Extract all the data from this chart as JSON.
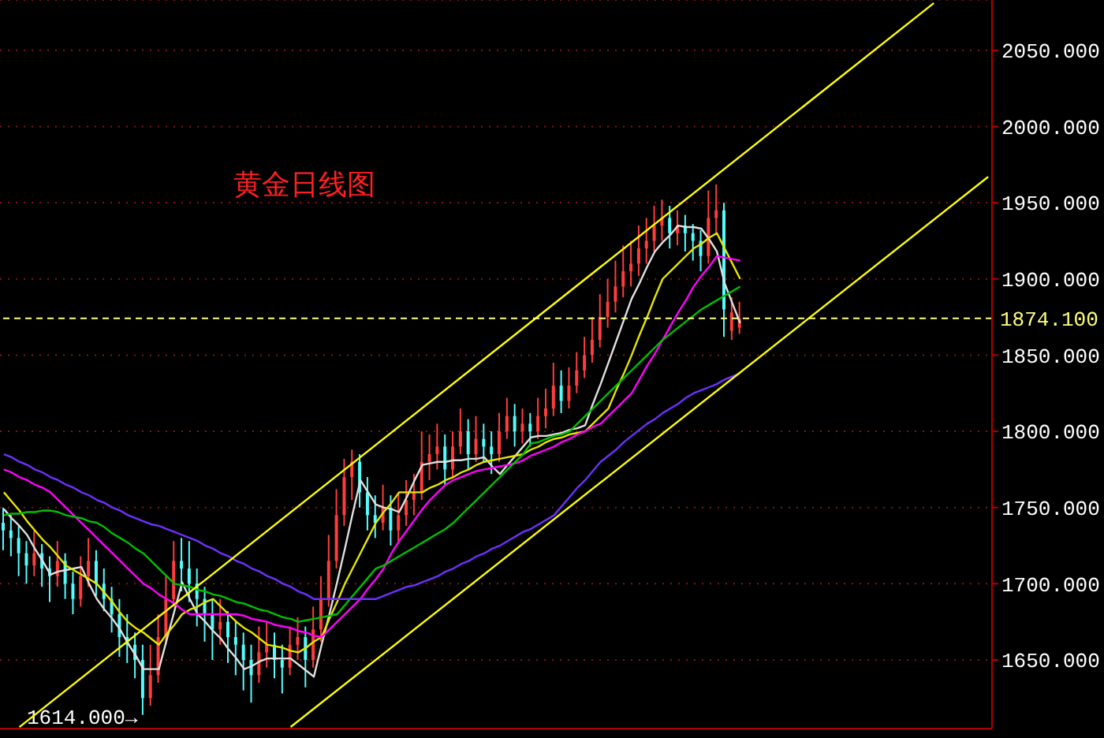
{
  "chart_data": {
    "type": "candlestick",
    "title": "黄金日线图",
    "categories": [
      null,
      null,
      null,
      null,
      null,
      null,
      null,
      null,
      null,
      null,
      null,
      null,
      null,
      null,
      null,
      null,
      null,
      null,
      null,
      null,
      null,
      null,
      null,
      null,
      null,
      null,
      null,
      null,
      null,
      null,
      null,
      null,
      null,
      null,
      null,
      null,
      null,
      null,
      null,
      null,
      null,
      null,
      null,
      null,
      null,
      null,
      null,
      null,
      null,
      null,
      null,
      null,
      null,
      null,
      null,
      null,
      null,
      null,
      null,
      null,
      null,
      null,
      null,
      null,
      null,
      null,
      null,
      null,
      null,
      null,
      null,
      null,
      null,
      null,
      null,
      null,
      null,
      null,
      null,
      null,
      null,
      null,
      null,
      null,
      null,
      null,
      null,
      null,
      null,
      null,
      null,
      null,
      null,
      null,
      null,
      null,
      null,
      null,
      null,
      null,
      null,
      null,
      null,
      null,
      null,
      null,
      null,
      null,
      null,
      null,
      null,
      null,
      null,
      null,
      null,
      null,
      null,
      null,
      null,
      null,
      null,
      null,
      null,
      null,
      null,
      null,
      null,
      null
    ],
    "ohlc": [
      [
        1740,
        1750,
        1722,
        1735
      ],
      [
        1735,
        1745,
        1718,
        1730
      ],
      [
        1730,
        1738,
        1705,
        1720
      ],
      [
        1720,
        1728,
        1700,
        1712
      ],
      [
        1712,
        1735,
        1705,
        1720
      ],
      [
        1720,
        1726,
        1698,
        1710
      ],
      [
        1710,
        1718,
        1688,
        1705
      ],
      [
        1705,
        1728,
        1698,
        1715
      ],
      [
        1715,
        1720,
        1690,
        1700
      ],
      [
        1700,
        1708,
        1680,
        1690
      ],
      [
        1690,
        1718,
        1685,
        1705
      ],
      [
        1705,
        1730,
        1698,
        1715
      ],
      [
        1715,
        1722,
        1692,
        1700
      ],
      [
        1700,
        1710,
        1682,
        1690
      ],
      [
        1690,
        1698,
        1668,
        1680
      ],
      [
        1680,
        1690,
        1652,
        1665
      ],
      [
        1665,
        1680,
        1648,
        1660
      ],
      [
        1660,
        1668,
        1638,
        1650
      ],
      [
        1650,
        1660,
        1614,
        1625
      ],
      [
        1625,
        1660,
        1620,
        1640
      ],
      [
        1640,
        1680,
        1635,
        1665
      ],
      [
        1665,
        1705,
        1660,
        1690
      ],
      [
        1690,
        1728,
        1685,
        1715
      ],
      [
        1715,
        1730,
        1695,
        1710
      ],
      [
        1710,
        1728,
        1688,
        1700
      ],
      [
        1700,
        1710,
        1672,
        1690
      ],
      [
        1690,
        1698,
        1662,
        1680
      ],
      [
        1680,
        1690,
        1650,
        1670
      ],
      [
        1670,
        1690,
        1660,
        1675
      ],
      [
        1675,
        1682,
        1648,
        1665
      ],
      [
        1665,
        1675,
        1640,
        1660
      ],
      [
        1660,
        1668,
        1630,
        1650
      ],
      [
        1650,
        1660,
        1622,
        1640
      ],
      [
        1640,
        1672,
        1635,
        1655
      ],
      [
        1655,
        1675,
        1645,
        1660
      ],
      [
        1660,
        1668,
        1638,
        1650
      ],
      [
        1650,
        1660,
        1628,
        1645
      ],
      [
        1645,
        1672,
        1640,
        1660
      ],
      [
        1660,
        1678,
        1650,
        1665
      ],
      [
        1665,
        1672,
        1632,
        1650
      ],
      [
        1650,
        1685,
        1645,
        1670
      ],
      [
        1670,
        1705,
        1662,
        1690
      ],
      [
        1690,
        1732,
        1685,
        1715
      ],
      [
        1715,
        1762,
        1710,
        1745
      ],
      [
        1745,
        1782,
        1738,
        1770
      ],
      [
        1770,
        1788,
        1755,
        1780
      ],
      [
        1780,
        1785,
        1750,
        1760
      ],
      [
        1760,
        1770,
        1735,
        1745
      ],
      [
        1745,
        1758,
        1730,
        1740
      ],
      [
        1740,
        1765,
        1735,
        1750
      ],
      [
        1750,
        1758,
        1725,
        1735
      ],
      [
        1735,
        1760,
        1728,
        1745
      ],
      [
        1745,
        1768,
        1738,
        1755
      ],
      [
        1755,
        1772,
        1745,
        1760
      ],
      [
        1760,
        1800,
        1755,
        1780
      ],
      [
        1780,
        1798,
        1768,
        1785
      ],
      [
        1785,
        1805,
        1775,
        1790
      ],
      [
        1790,
        1798,
        1765,
        1775
      ],
      [
        1775,
        1800,
        1770,
        1790
      ],
      [
        1790,
        1815,
        1785,
        1800
      ],
      [
        1800,
        1808,
        1775,
        1785
      ],
      [
        1785,
        1810,
        1780,
        1795
      ],
      [
        1795,
        1805,
        1780,
        1790
      ],
      [
        1790,
        1800,
        1772,
        1785
      ],
      [
        1785,
        1812,
        1780,
        1800
      ],
      [
        1800,
        1822,
        1795,
        1810
      ],
      [
        1810,
        1818,
        1790,
        1800
      ],
      [
        1800,
        1815,
        1792,
        1805
      ],
      [
        1805,
        1812,
        1790,
        1800
      ],
      [
        1800,
        1822,
        1795,
        1810
      ],
      [
        1810,
        1828,
        1802,
        1815
      ],
      [
        1815,
        1845,
        1810,
        1830
      ],
      [
        1830,
        1840,
        1812,
        1820
      ],
      [
        1820,
        1842,
        1815,
        1830
      ],
      [
        1830,
        1852,
        1825,
        1840
      ],
      [
        1840,
        1862,
        1835,
        1850
      ],
      [
        1850,
        1875,
        1845,
        1860
      ],
      [
        1860,
        1890,
        1855,
        1875
      ],
      [
        1875,
        1900,
        1868,
        1885
      ],
      [
        1885,
        1912,
        1878,
        1895
      ],
      [
        1895,
        1922,
        1888,
        1905
      ],
      [
        1905,
        1925,
        1895,
        1910
      ],
      [
        1910,
        1935,
        1902,
        1920
      ],
      [
        1920,
        1940,
        1910,
        1925
      ],
      [
        1925,
        1948,
        1918,
        1935
      ],
      [
        1935,
        1952,
        1925,
        1940
      ],
      [
        1940,
        1948,
        1920,
        1930
      ],
      [
        1930,
        1945,
        1922,
        1935
      ],
      [
        1935,
        1942,
        1918,
        1930
      ],
      [
        1930,
        1936,
        1912,
        1925
      ],
      [
        1925,
        1932,
        1905,
        1915
      ],
      [
        1915,
        1958,
        1910,
        1940
      ],
      [
        1940,
        1962,
        1930,
        1945
      ],
      [
        1945,
        1950,
        1862,
        1880
      ],
      [
        1866,
        1888,
        1860,
        1878
      ],
      [
        1868,
        1885,
        1864,
        1874
      ],
      null,
      null,
      null,
      null,
      null,
      null,
      null,
      null,
      null,
      null,
      null,
      null,
      null,
      null,
      null,
      null,
      null,
      null,
      null,
      null,
      null,
      null,
      null,
      null,
      null,
      null,
      null,
      null,
      null,
      null,
      null,
      null
    ],
    "colors": [
      "#54fcfc",
      "#54fcfc",
      "#54fcfc",
      "#54fcfc",
      "#ff3c3c",
      "#54fcfc",
      "#54fcfc",
      "#ff3c3c",
      "#54fcfc",
      "#54fcfc",
      "#ff3c3c",
      "#ff3c3c",
      "#54fcfc",
      "#54fcfc",
      "#54fcfc",
      "#54fcfc",
      "#54fcfc",
      "#54fcfc",
      "#54fcfc",
      "#ff3c3c",
      "#ff3c3c",
      "#ff3c3c",
      "#ff3c3c",
      "#54fcfc",
      "#54fcfc",
      "#54fcfc",
      "#54fcfc",
      "#54fcfc",
      "#ff3c3c",
      "#54fcfc",
      "#54fcfc",
      "#54fcfc",
      "#54fcfc",
      "#ff3c3c",
      "#ff3c3c",
      "#54fcfc",
      "#54fcfc",
      "#ff3c3c",
      "#ff3c3c",
      "#54fcfc",
      "#ff3c3c",
      "#ff3c3c",
      "#ff3c3c",
      "#ff3c3c",
      "#ff3c3c",
      "#ff3c3c",
      "#54fcfc",
      "#54fcfc",
      "#54fcfc",
      "#ff3c3c",
      "#54fcfc",
      "#ff3c3c",
      "#ff3c3c",
      "#ff3c3c",
      "#ff3c3c",
      "#ff3c3c",
      "#ff3c3c",
      "#54fcfc",
      "#ff3c3c",
      "#ff3c3c",
      "#54fcfc",
      "#ff3c3c",
      "#54fcfc",
      "#54fcfc",
      "#ff3c3c",
      "#ff3c3c",
      "#54fcfc",
      "#ff3c3c",
      "#54fcfc",
      "#ff3c3c",
      "#ff3c3c",
      "#ff3c3c",
      "#54fcfc",
      "#ff3c3c",
      "#ff3c3c",
      "#ff3c3c",
      "#ff3c3c",
      "#ff3c3c",
      "#ff3c3c",
      "#ff3c3c",
      "#ff3c3c",
      "#ff3c3c",
      "#ff3c3c",
      "#ff3c3c",
      "#ff3c3c",
      "#ff3c3c",
      "#54fcfc",
      "#ff3c3c",
      "#54fcfc",
      "#54fcfc",
      "#54fcfc",
      "#ff3c3c",
      "#ff3c3c",
      "#54fcfc",
      "#ff3c3c",
      "#ff3c3c",
      null,
      null,
      null,
      null,
      null,
      null,
      null,
      null,
      null,
      null,
      null,
      null,
      null,
      null,
      null,
      null,
      null,
      null,
      null,
      null,
      null,
      null,
      null,
      null,
      null,
      null,
      null,
      null,
      null,
      null,
      null,
      null
    ],
    "series": [
      {
        "type": "line",
        "color": "#e0e0e0",
        "values": [
          1749,
          1743,
          1738,
          1732,
          1723,
          1715,
          1706,
          1708,
          1709,
          1710,
          1711,
          1700,
          1690,
          1683,
          1677,
          1670,
          1661,
          1653,
          1644,
          1644,
          1644,
          1663,
          1682,
          1701,
          1690,
          1680,
          1675,
          1669,
          1664,
          1657,
          1651,
          1644,
          1646,
          1649,
          1651,
          1651,
          1651,
          1651,
          1647,
          1643,
          1639,
          1660,
          1680,
          1701,
          1723,
          1746,
          1768,
          1760,
          1752,
          1750,
          1749,
          1747,
          1757,
          1768,
          1778,
          1779,
          1780,
          1780,
          1781,
          1781,
          1782,
          1782,
          1783,
          1777,
          1772,
          1778,
          1784,
          1790,
          1796,
          1797,
          1797,
          1798,
          1799,
          1801,
          1802,
          1804,
          1818,
          1831,
          1845,
          1859,
          1873,
          1887,
          1897,
          1908,
          1918,
          1924,
          1929,
          1935,
          1934,
          1934,
          1933,
          1926,
          1918,
          1897,
          1884,
          1871,
          null,
          null,
          null,
          null,
          null,
          null,
          null,
          null,
          null,
          null,
          null,
          null,
          null,
          null,
          null,
          null,
          null,
          null,
          null,
          null,
          null,
          null,
          null,
          null,
          null,
          null,
          null,
          null,
          null,
          null,
          null,
          null
        ]
      },
      {
        "type": "line",
        "color": "#e6e600",
        "values": [
          1760,
          1754,
          1748,
          1741,
          1735,
          1729,
          1724,
          1718,
          1712,
          1709,
          1706,
          1703,
          1700,
          1694,
          1688,
          1681,
          1675,
          1671,
          1668,
          1664,
          1660,
          1667,
          1673,
          1680,
          1683,
          1685,
          1688,
          1690,
          1685,
          1680,
          1675,
          1671,
          1668,
          1664,
          1660,
          1659,
          1658,
          1656,
          1655,
          1658,
          1662,
          1665,
          1677,
          1688,
          1700,
          1710,
          1720,
          1730,
          1740,
          1747,
          1753,
          1760,
          1760,
          1760,
          1760,
          1763,
          1765,
          1768,
          1770,
          1773,
          1775,
          1778,
          1780,
          1781,
          1782,
          1783,
          1784,
          1785,
          1788,
          1790,
          1793,
          1795,
          1796,
          1798,
          1799,
          1800,
          1805,
          1810,
          1815,
          1827,
          1838,
          1850,
          1863,
          1875,
          1888,
          1900,
          1905,
          1910,
          1915,
          1920,
          1923,
          1927,
          1930,
          1920,
          1910,
          1900,
          null,
          null,
          null,
          null,
          null,
          null,
          null,
          null,
          null,
          null,
          null,
          null,
          null,
          null,
          null,
          null,
          null,
          null,
          null,
          null,
          null,
          null,
          null,
          null,
          null,
          null,
          null,
          null,
          null,
          null,
          null,
          null
        ]
      },
      {
        "type": "line",
        "color": "#ff00ff",
        "values": [
          1775,
          1773,
          1770,
          1768,
          1765,
          1763,
          1760,
          1755,
          1750,
          1745,
          1740,
          1735,
          1730,
          1725,
          1720,
          1715,
          1710,
          1705,
          1700,
          1697,
          1693,
          1690,
          1687,
          1683,
          1680,
          1680,
          1680,
          1680,
          1680,
          1680,
          1680,
          1679,
          1677,
          1676,
          1675,
          1673,
          1672,
          1671,
          1669,
          1668,
          1666,
          1665,
          1670,
          1675,
          1680,
          1685,
          1690,
          1697,
          1703,
          1710,
          1720,
          1728,
          1735,
          1742,
          1749,
          1755,
          1760,
          1765,
          1768,
          1770,
          1772,
          1774,
          1775,
          1776,
          1777,
          1778,
          1779,
          1781,
          1784,
          1786,
          1788,
          1790,
          1793,
          1795,
          1798,
          1800,
          1803,
          1805,
          1810,
          1815,
          1820,
          1825,
          1834,
          1843,
          1851,
          1860,
          1869,
          1878,
          1886,
          1895,
          1902,
          1908,
          1915,
          1914,
          1913,
          1912,
          null,
          null,
          null,
          null,
          null,
          null,
          null,
          null,
          null,
          null,
          null,
          null,
          null,
          null,
          null,
          null,
          null,
          null,
          null,
          null,
          null,
          null,
          null,
          null,
          null,
          null,
          null,
          null,
          null,
          null,
          null,
          null
        ]
      },
      {
        "type": "line",
        "color": "#00c000",
        "values": [
          1745,
          1746,
          1746,
          1747,
          1747,
          1748,
          1748,
          1747,
          1745,
          1744,
          1743,
          1741,
          1740,
          1737,
          1733,
          1730,
          1727,
          1723,
          1720,
          1715,
          1710,
          1705,
          1700,
          1699,
          1698,
          1696,
          1695,
          1693,
          1692,
          1690,
          1688,
          1687,
          1685,
          1683,
          1682,
          1680,
          1678,
          1677,
          1675,
          1676,
          1677,
          1678,
          1679,
          1680,
          1686,
          1692,
          1698,
          1704,
          1710,
          1712,
          1715,
          1718,
          1721,
          1724,
          1727,
          1730,
          1733,
          1736,
          1740,
          1745,
          1750,
          1755,
          1760,
          1765,
          1770,
          1775,
          1780,
          1785,
          1792,
          1793,
          1795,
          1797,
          1798,
          1800,
          1805,
          1810,
          1815,
          1820,
          1825,
          1830,
          1835,
          1840,
          1845,
          1850,
          1855,
          1860,
          1864,
          1868,
          1872,
          1876,
          1880,
          1883,
          1886,
          1889,
          1892,
          1895,
          null,
          null,
          null,
          null,
          null,
          null,
          null,
          null,
          null,
          null,
          null,
          null,
          null,
          null,
          null,
          null,
          null,
          null,
          null,
          null,
          null,
          null,
          null,
          null,
          null,
          null,
          null,
          null,
          null,
          null,
          null,
          null
        ]
      },
      {
        "type": "line",
        "color": "#7030ff",
        "values": [
          1785,
          1783,
          1780,
          1778,
          1775,
          1773,
          1770,
          1768,
          1765,
          1763,
          1760,
          1758,
          1755,
          1753,
          1750,
          1748,
          1745,
          1743,
          1741,
          1739,
          1738,
          1736,
          1734,
          1732,
          1730,
          1728,
          1725,
          1723,
          1720,
          1718,
          1715,
          1713,
          1710,
          1708,
          1705,
          1703,
          1700,
          1698,
          1695,
          1693,
          1690,
          1690,
          1690,
          1690,
          1690,
          1690,
          1690,
          1690,
          1690,
          1692,
          1694,
          1696,
          1698,
          1699,
          1701,
          1703,
          1705,
          1708,
          1710,
          1713,
          1715,
          1718,
          1720,
          1723,
          1725,
          1728,
          1731,
          1734,
          1736,
          1739,
          1742,
          1745,
          1751,
          1757,
          1763,
          1768,
          1774,
          1780,
          1784,
          1788,
          1793,
          1797,
          1801,
          1805,
          1808,
          1812,
          1815,
          1818,
          1822,
          1825,
          1827,
          1829,
          1831,
          1834,
          1836,
          1838,
          null,
          null,
          null,
          null,
          null,
          null,
          null,
          null,
          null,
          null,
          null,
          null,
          null,
          null,
          null,
          null,
          null,
          null,
          null,
          null,
          null,
          null,
          null,
          null,
          null,
          null,
          null,
          null,
          null,
          null,
          null,
          null
        ]
      },
      {
        "type": "line",
        "color": "#ffff00",
        "values": [
          null,
          null,
          1606,
          null,
          null,
          null,
          null,
          null,
          null,
          null,
          null,
          null,
          null,
          null,
          null,
          null,
          null,
          null,
          null,
          null,
          null,
          null,
          null,
          null,
          null,
          null,
          null,
          null,
          null,
          null,
          null,
          null,
          null,
          null,
          null,
          null,
          null,
          null,
          null,
          null,
          null,
          null,
          null,
          null,
          null,
          null,
          null,
          null,
          null,
          null,
          null,
          null,
          null,
          null,
          null,
          null,
          null,
          null,
          null,
          null,
          null,
          null,
          null,
          null,
          null,
          null,
          null,
          null,
          null,
          null,
          null,
          null,
          null,
          null,
          null,
          null,
          null,
          null,
          null,
          null,
          null,
          null,
          null,
          null,
          null,
          null,
          null,
          null,
          null,
          null,
          null,
          null,
          null,
          null,
          null,
          null,
          null,
          null,
          null,
          null,
          null,
          null,
          null,
          null,
          null,
          null,
          null,
          null,
          null,
          null,
          null,
          null,
          null,
          null,
          null,
          null,
          null,
          null,
          null,
          null,
          2081,
          null,
          null,
          null,
          null,
          null,
          null,
          null
        ]
      },
      {
        "type": "line",
        "color": "#ffff00",
        "values": [
          null,
          null,
          null,
          null,
          null,
          null,
          null,
          null,
          null,
          null,
          null,
          null,
          null,
          null,
          null,
          null,
          null,
          null,
          null,
          null,
          null,
          null,
          null,
          null,
          null,
          null,
          null,
          null,
          null,
          null,
          null,
          null,
          null,
          null,
          null,
          null,
          null,
          1606,
          null,
          null,
          null,
          null,
          null,
          null,
          null,
          null,
          null,
          null,
          null,
          null,
          null,
          null,
          null,
          null,
          null,
          null,
          null,
          null,
          null,
          null,
          null,
          null,
          null,
          null,
          null,
          null,
          null,
          null,
          null,
          null,
          null,
          null,
          null,
          null,
          null,
          null,
          null,
          null,
          null,
          null,
          null,
          null,
          null,
          null,
          null,
          null,
          null,
          null,
          null,
          null,
          null,
          null,
          null,
          null,
          null,
          null,
          null,
          null,
          null,
          null,
          null,
          null,
          null,
          null,
          null,
          null,
          null,
          null,
          null,
          null,
          null,
          null,
          null,
          null,
          null,
          null,
          null,
          null,
          null,
          null,
          null,
          null,
          null,
          null,
          null,
          null,
          null,
          1967
        ]
      }
    ],
    "ylim": [
      1605,
      2083
    ],
    "yticks": [
      {
        "value": 1650,
        "label": "1650.000"
      },
      {
        "value": 1700,
        "label": "1700.000"
      },
      {
        "value": 1750,
        "label": "1750.000"
      },
      {
        "value": 1800,
        "label": "1800.000"
      },
      {
        "value": 1850,
        "label": "1850.000"
      },
      {
        "value": 1900,
        "label": "1900.000"
      },
      {
        "value": 1950,
        "label": "1950.000"
      },
      {
        "value": 2000,
        "label": "2000.000"
      },
      {
        "value": 2050,
        "label": "2050.000"
      }
    ],
    "tick_labels": "y",
    "grid": "y",
    "ref_lines": [
      {
        "axis": "y",
        "value": 1874.1,
        "label": "1874.100",
        "color": "#ffff80",
        "line_style": "dashed"
      }
    ],
    "annotations": [
      "1614.000→"
    ]
  }
}
